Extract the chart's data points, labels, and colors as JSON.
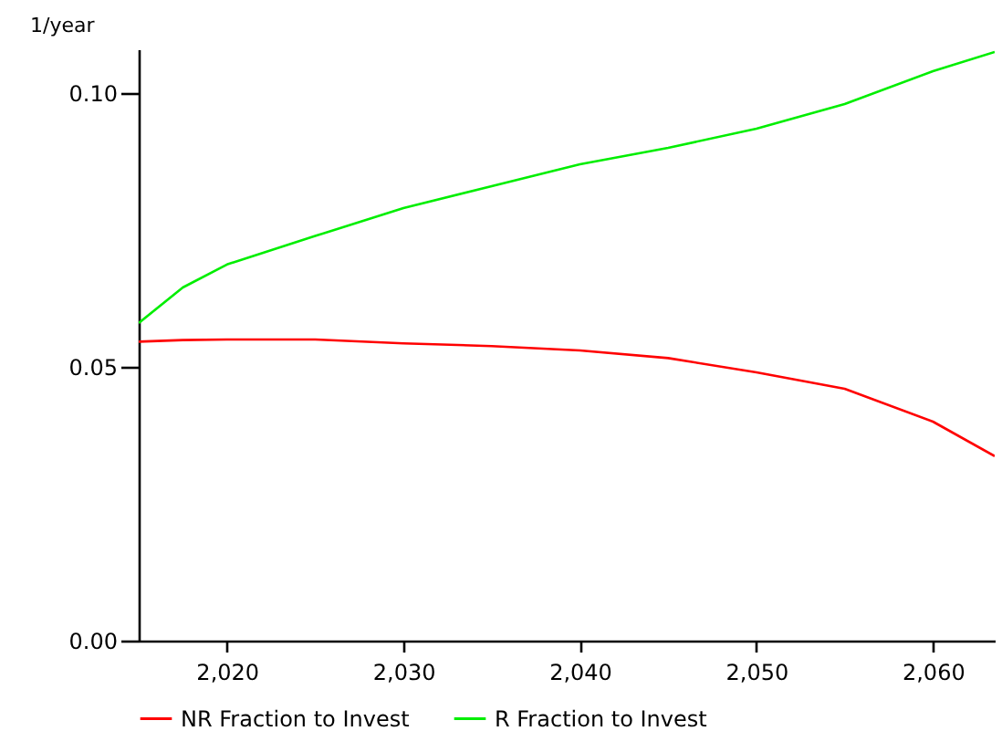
{
  "chart_data": {
    "type": "line",
    "ylabel": "1/year",
    "x": [
      2015,
      2017.5,
      2020,
      2025,
      2030,
      2035,
      2040,
      2045,
      2050,
      2055,
      2060,
      2063.5
    ],
    "series": [
      {
        "name": "NR Fraction to Invest",
        "color": "#ff0000",
        "values": [
          0.0546,
          0.0549,
          0.055,
          0.055,
          0.0543,
          0.0538,
          0.053,
          0.0516,
          0.049,
          0.046,
          0.04,
          0.0337
        ]
      },
      {
        "name": "R Fraction to Invest",
        "color": "#00ee00",
        "values": [
          0.058,
          0.0645,
          0.0687,
          0.0739,
          0.079,
          0.083,
          0.087,
          0.09,
          0.0935,
          0.098,
          0.104,
          0.1075
        ]
      }
    ],
    "xlim": [
      2015,
      2063.5
    ],
    "ylim": [
      0,
      0.108
    ],
    "xticks": [
      {
        "value": 2020,
        "label": "2,020"
      },
      {
        "value": 2030,
        "label": "2,030"
      },
      {
        "value": 2040,
        "label": "2,040"
      },
      {
        "value": 2050,
        "label": "2,050"
      },
      {
        "value": 2060,
        "label": "2,060"
      }
    ],
    "yticks": [
      {
        "value": 0,
        "label": "0.00"
      },
      {
        "value": 0.05,
        "label": "0.05"
      },
      {
        "value": 0.1,
        "label": "0.10"
      }
    ],
    "grid": false,
    "legend": "bottom",
    "marker": "none",
    "line_style": "solid"
  }
}
